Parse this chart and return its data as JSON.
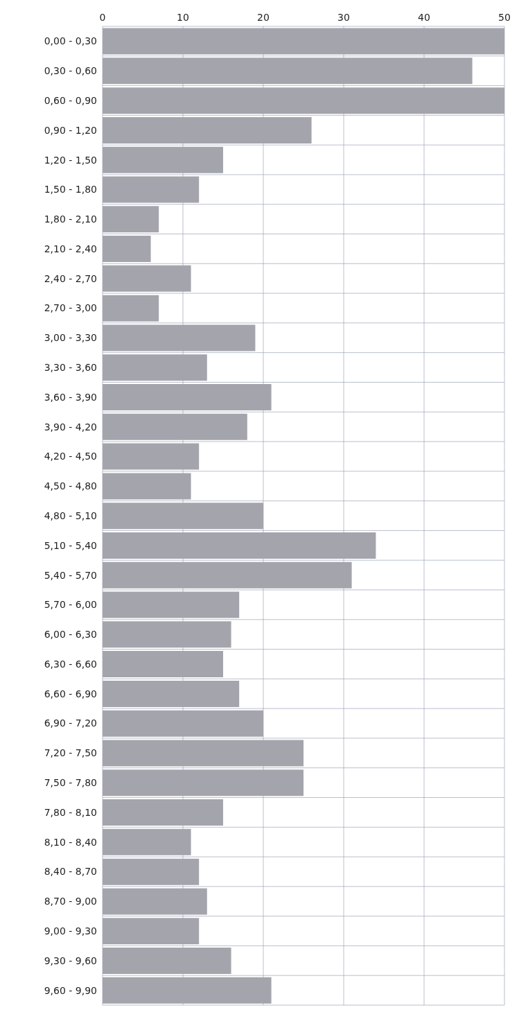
{
  "chart_data": {
    "type": "bar",
    "orientation": "horizontal",
    "categories": [
      "0,00 - 0,30",
      "0,30 - 0,60",
      "0,60 - 0,90",
      "0,90 - 1,20",
      "1,20 - 1,50",
      "1,50 - 1,80",
      "1,80 - 2,10",
      "2,10 - 2,40",
      "2,40 - 2,70",
      "2,70 - 3,00",
      "3,00 - 3,30",
      "3,30 - 3,60",
      "3,60 - 3,90",
      "3,90 - 4,20",
      "4,20 - 4,50",
      "4,50 - 4,80",
      "4,80 - 5,10",
      "5,10 - 5,40",
      "5,40 - 5,70",
      "5,70 - 6,00",
      "6,00 - 6,30",
      "6,30 - 6,60",
      "6,60 - 6,90",
      "6,90 - 7,20",
      "7,20 - 7,50",
      "7,50 - 7,80",
      "7,80 - 8,10",
      "8,10 - 8,40",
      "8,40 - 8,70",
      "8,70 - 9,00",
      "9,00 - 9,30",
      "9,30 - 9,60",
      "9,60 - 9,90"
    ],
    "values": [
      50,
      46,
      50,
      26,
      15,
      12,
      7,
      6,
      11,
      7,
      19,
      13,
      21,
      18,
      12,
      11,
      20,
      34,
      31,
      17,
      16,
      15,
      17,
      20,
      25,
      25,
      15,
      11,
      12,
      13,
      12,
      16,
      21
    ],
    "color": "#a4a4ac",
    "xlim": [
      0,
      50
    ],
    "xticks": [
      0,
      10,
      20,
      30,
      40,
      50
    ],
    "grid": true
  }
}
